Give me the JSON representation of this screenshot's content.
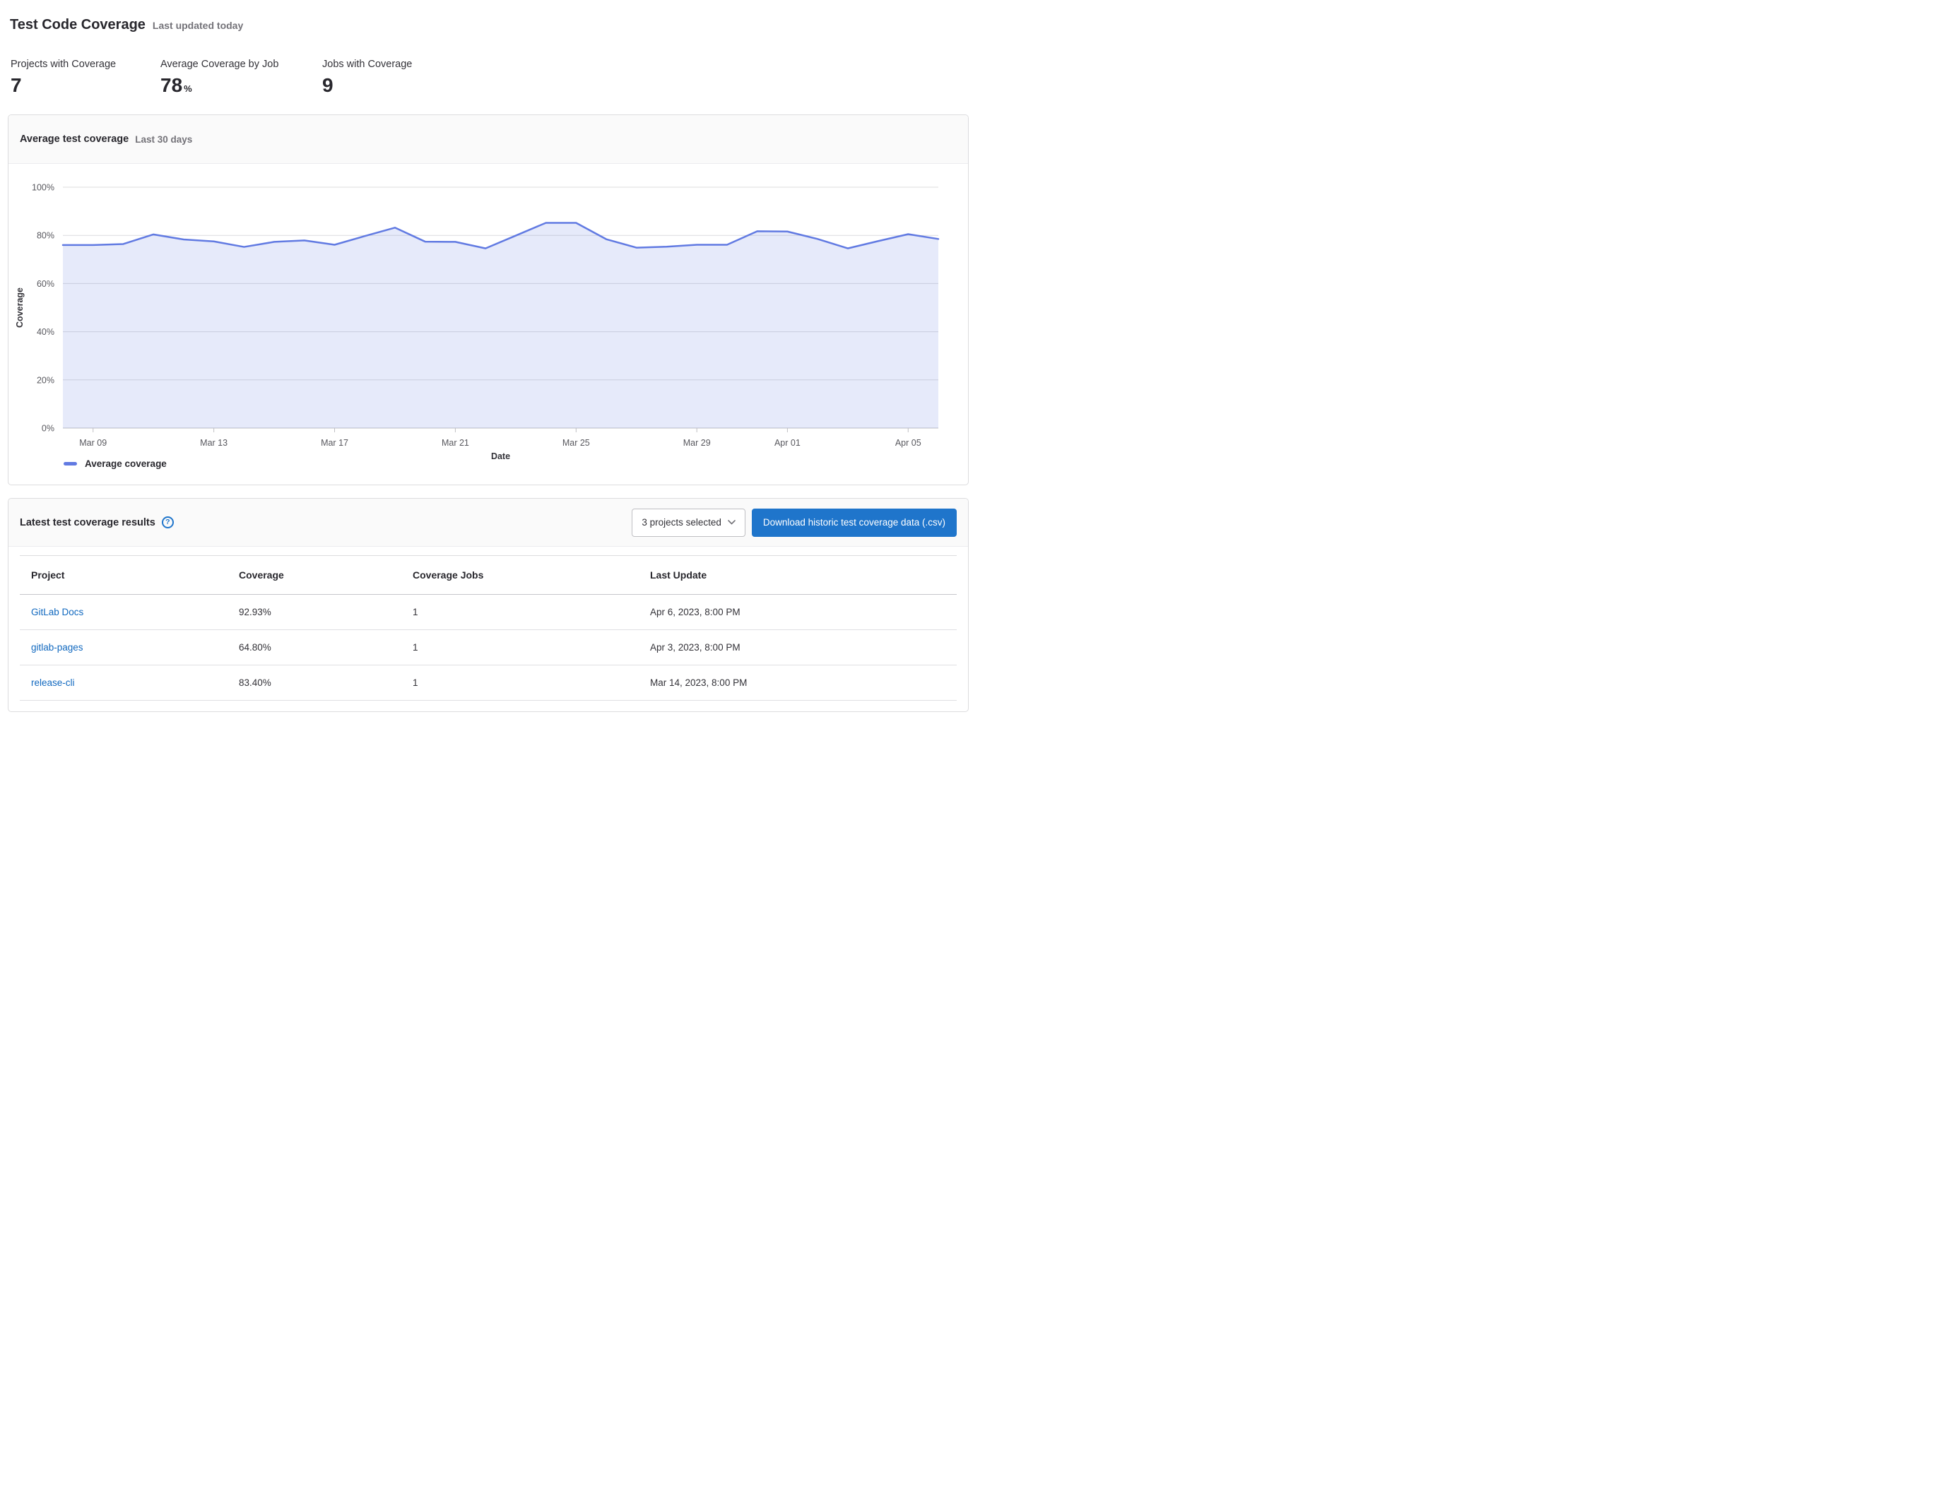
{
  "page": {
    "title": "Test Code Coverage",
    "subtitle": "Last updated today"
  },
  "stats": [
    {
      "label": "Projects with Coverage",
      "value": "7",
      "unit": ""
    },
    {
      "label": "Average Coverage by Job",
      "value": "78",
      "unit": "%"
    },
    {
      "label": "Jobs with Coverage",
      "value": "9",
      "unit": ""
    }
  ],
  "chart_panel": {
    "title": "Average test coverage",
    "subtitle": "Last 30 days"
  },
  "chart_data": {
    "type": "area",
    "title": "Average test coverage",
    "xlabel": "Date",
    "ylabel": "Coverage",
    "ylim": [
      0,
      100
    ],
    "grid": true,
    "legend_position": "bottom-left",
    "y_ticks": [
      "0%",
      "20%",
      "40%",
      "60%",
      "80%",
      "100%"
    ],
    "x": [
      "Mar 08",
      "Mar 09",
      "Mar 10",
      "Mar 11",
      "Mar 12",
      "Mar 13",
      "Mar 14",
      "Mar 15",
      "Mar 16",
      "Mar 17",
      "Mar 18",
      "Mar 19",
      "Mar 20",
      "Mar 21",
      "Mar 22",
      "Mar 23",
      "Mar 24",
      "Mar 25",
      "Mar 26",
      "Mar 27",
      "Mar 28",
      "Mar 29",
      "Mar 30",
      "Mar 31",
      "Apr 01",
      "Apr 02",
      "Apr 03",
      "Apr 04",
      "Apr 05",
      "Apr 06"
    ],
    "x_tick_labels": [
      "Mar 09",
      "Mar 13",
      "Mar 17",
      "Mar 21",
      "Mar 25",
      "Mar 29",
      "Apr 01",
      "Apr 05"
    ],
    "series": [
      {
        "name": "Average coverage",
        "values": [
          76,
          76,
          76.4,
          80.4,
          78.3,
          77.5,
          75.2,
          77.3,
          77.9,
          76.1,
          79.7,
          83.2,
          77.4,
          77.3,
          74.6,
          79.9,
          85.2,
          85.2,
          78.4,
          74.9,
          75.3,
          76.1,
          76.1,
          81.7,
          81.6,
          78.5,
          74.6,
          77.6,
          80.5,
          78.5
        ]
      }
    ],
    "line_color": "#617ae2",
    "fill_color": "rgba(97,122,226,0.16)",
    "grid_color": "#dcdcde",
    "baseline_color": "#bfbfc3"
  },
  "results_panel": {
    "title": "Latest test coverage results",
    "help_icon": "question-mark-circle-icon",
    "project_filter": {
      "value": "3 projects selected",
      "icon": "chevron-down-icon"
    },
    "download_button_label": "Download historic test coverage data (.csv)",
    "table": {
      "columns": [
        "Project",
        "Coverage",
        "Coverage Jobs",
        "Last Update"
      ],
      "rows": [
        {
          "project": "GitLab Docs",
          "coverage": "92.93%",
          "jobs": "1",
          "last_update": "Apr 6, 2023, 8:00 PM"
        },
        {
          "project": "gitlab-pages",
          "coverage": "64.80%",
          "jobs": "1",
          "last_update": "Apr 3, 2023, 8:00 PM"
        },
        {
          "project": "release-cli",
          "coverage": "83.40%",
          "jobs": "1",
          "last_update": "Mar 14, 2023, 8:00 PM"
        }
      ]
    }
  },
  "colors": {
    "accent_blue": "#1f75cb",
    "link_blue": "#1068bf",
    "chart_line": "#617ae2",
    "border": "#dcdcde",
    "text_primary": "#28272d",
    "text_secondary": "#737278"
  }
}
